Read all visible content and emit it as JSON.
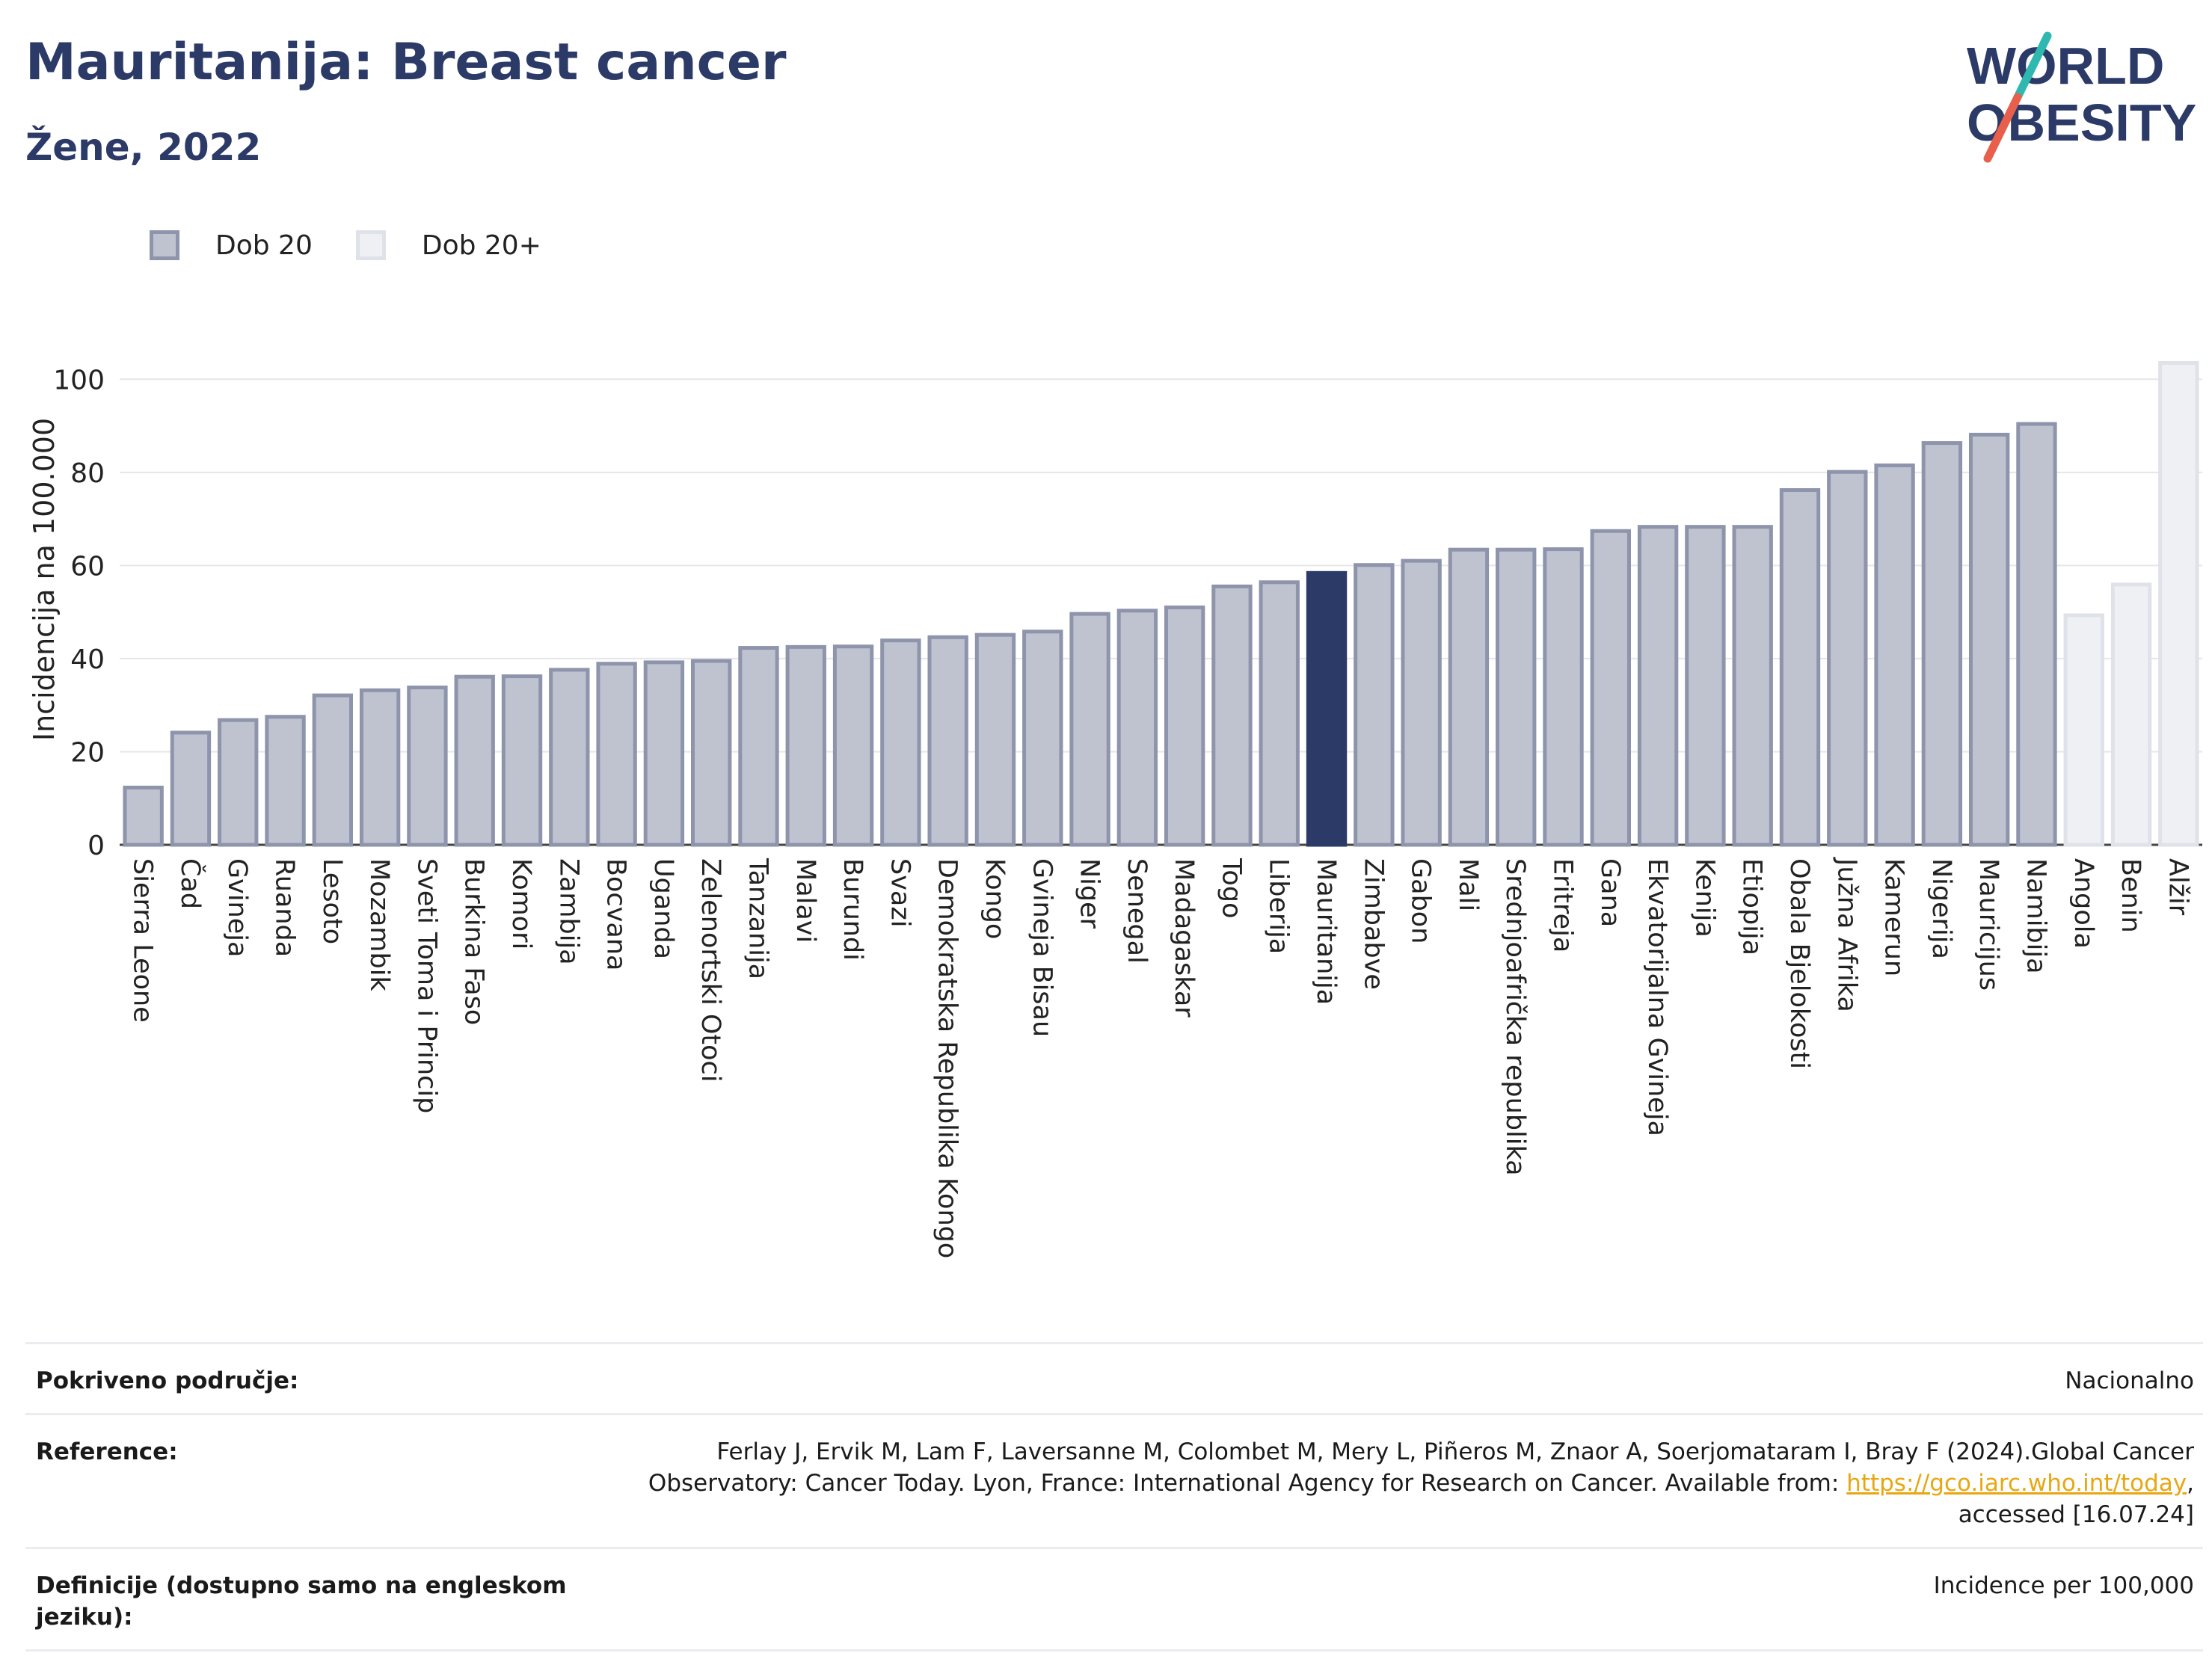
{
  "header": {
    "title": "Mauritanija: Breast cancer",
    "subtitle": "Žene, 2022"
  },
  "logo": {
    "line1": "WORLD",
    "line2": "OBESITY",
    "accent_colors": [
      "#2fb8b0",
      "#e8604c"
    ]
  },
  "legend": [
    {
      "label": "Dob 20",
      "color": "#bfc3d0"
    },
    {
      "label": "Dob 20+",
      "color": "#eef0f4"
    }
  ],
  "chart_data": {
    "type": "bar",
    "ylabel": "Incidencija na 100.000",
    "ylim": [
      0,
      110
    ],
    "yticks": [
      0,
      20,
      40,
      60,
      80,
      100
    ],
    "grid": true,
    "legend_position": "top-left",
    "highlight": "Mauritanija",
    "colors": {
      "dob20": "#bfc3d0",
      "dob20plus": "#eef0f4",
      "highlight": "#2b3a67"
    },
    "categories": [
      "Sierra Leone",
      "Čad",
      "Gvineja",
      "Ruanda",
      "Lesoto",
      "Mozambik",
      "Sveti Toma i Princip",
      "Burkina Faso",
      "Komori",
      "Zambija",
      "Bocvana",
      "Uganda",
      "Zelenortski Otoci",
      "Tanzanija",
      "Malavi",
      "Burundi",
      "Svazi",
      "Demokratska Republika Kongo",
      "Kongo",
      "Gvineja Bisau",
      "Niger",
      "Senegal",
      "Madagaskar",
      "Togo",
      "Liberija",
      "Mauritanija",
      "Zimbabve",
      "Gabon",
      "Mali",
      "Srednjoafrička republika",
      "Eritreja",
      "Gana",
      "Ekvatorijalna Gvineja",
      "Kenija",
      "Etiopija",
      "Obala Bjelokosti",
      "Južna Afrika",
      "Kamerun",
      "Nigerija",
      "Mauricijus",
      "Namibija",
      "Angola",
      "Benin",
      "Alžir"
    ],
    "values": [
      12.3,
      24.1,
      26.8,
      27.5,
      32.1,
      33.2,
      33.8,
      36.1,
      36.2,
      37.6,
      38.9,
      39.2,
      39.5,
      42.3,
      42.5,
      42.6,
      43.9,
      44.6,
      45.1,
      45.8,
      49.6,
      50.3,
      51.0,
      55.5,
      56.4,
      58.4,
      60.1,
      61.0,
      63.4,
      63.4,
      63.5,
      67.4,
      68.3,
      68.3,
      68.3,
      76.2,
      80.1,
      81.5,
      86.3,
      88.1,
      90.4,
      49.3,
      55.9,
      103.5
    ],
    "series_group": [
      "Dob 20",
      "Dob 20",
      "Dob 20",
      "Dob 20",
      "Dob 20",
      "Dob 20",
      "Dob 20",
      "Dob 20",
      "Dob 20",
      "Dob 20",
      "Dob 20",
      "Dob 20",
      "Dob 20",
      "Dob 20",
      "Dob 20",
      "Dob 20",
      "Dob 20",
      "Dob 20",
      "Dob 20",
      "Dob 20",
      "Dob 20",
      "Dob 20",
      "Dob 20",
      "Dob 20",
      "Dob 20",
      "Dob 20",
      "Dob 20",
      "Dob 20",
      "Dob 20",
      "Dob 20",
      "Dob 20",
      "Dob 20",
      "Dob 20",
      "Dob 20",
      "Dob 20",
      "Dob 20",
      "Dob 20",
      "Dob 20",
      "Dob 20",
      "Dob 20",
      "Dob 20",
      "Dob 20+",
      "Dob 20+",
      "Dob 20+"
    ]
  },
  "footer": {
    "rows": [
      {
        "label": "Pokriveno područje:",
        "value": "Nacionalno"
      },
      {
        "label": "Reference:",
        "value_before_link": "Ferlay J, Ervik M, Lam F, Laversanne M, Colombet M, Mery L, Piñeros M, Znaor A, Soerjomataram I, Bray F (2024).Global Cancer Observatory: Cancer Today. Lyon, France: International Agency for Research on Cancer. Available from: ",
        "link_text": "https://gco.iarc.who.int/today",
        "value_after_link": ", accessed [16.07.24]"
      },
      {
        "label": "Definicije (dostupno samo na engleskom jeziku):",
        "value": "Incidence per 100,000"
      }
    ]
  }
}
